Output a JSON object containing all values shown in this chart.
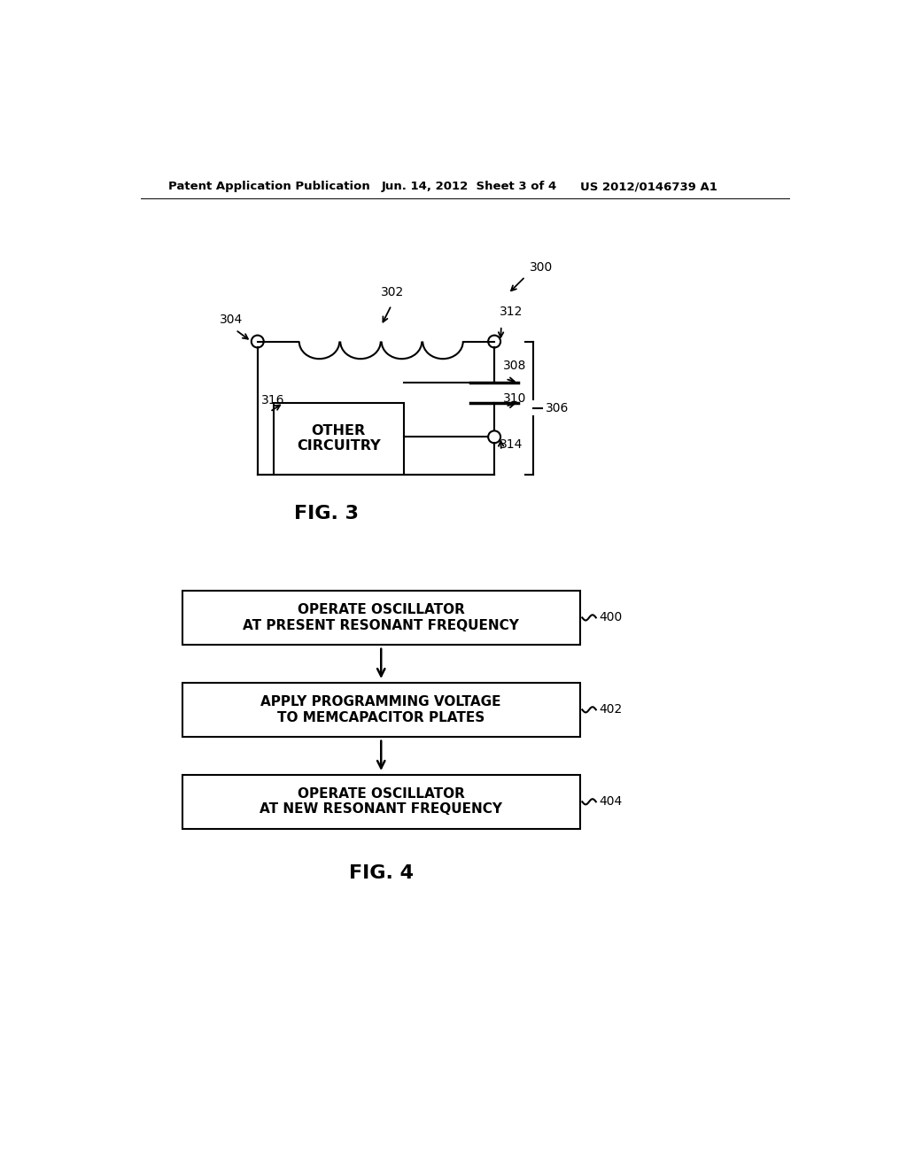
{
  "background_color": "#ffffff",
  "header_left": "Patent Application Publication",
  "header_center": "Jun. 14, 2012  Sheet 3 of 4",
  "header_right": "US 2012/0146739 A1",
  "fig3_label": "FIG. 3",
  "fig4_label": "FIG. 4",
  "ref_300": "300",
  "ref_302": "302",
  "ref_304": "304",
  "ref_306": "306",
  "ref_308": "308",
  "ref_310": "310",
  "ref_312": "312",
  "ref_314": "314",
  "ref_316": "316",
  "box_text": "OTHER\nCIRCUITRY",
  "flow_400_text": "OPERATE OSCILLATOR\nAT PRESENT RESONANT FREQUENCY",
  "flow_402_text": "APPLY PROGRAMMING VOLTAGE\nTO MEMCAPACITOR PLATES",
  "flow_404_text": "OPERATE OSCILLATOR\nAT NEW RESONANT FREQUENCY",
  "ref_400": "400",
  "ref_402": "402",
  "ref_404": "404"
}
